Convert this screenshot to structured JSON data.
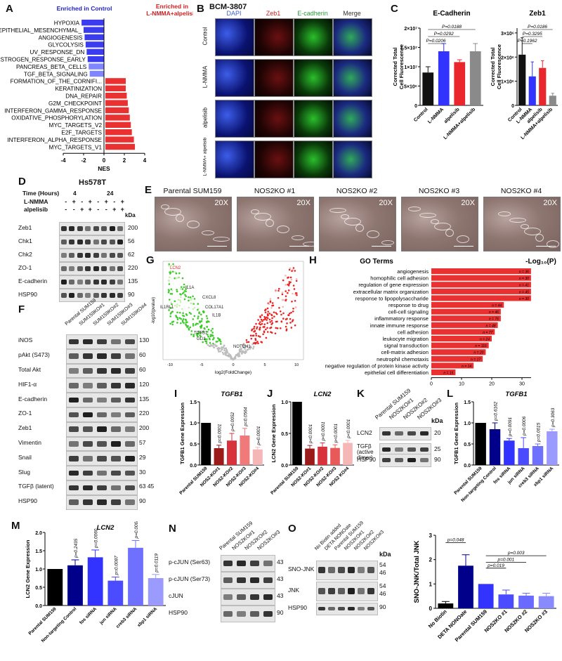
{
  "panels": {
    "A": {
      "label": "A",
      "header_control": "Enriched in Control",
      "header_treat": "Enriched in L-NMMA+alpelisib",
      "xlabel": "NES",
      "ticks": [
        "-4",
        "-2",
        "0",
        "2",
        "4"
      ],
      "terms": [
        {
          "name": "HYPOXIA",
          "nes": -2.2
        },
        {
          "name": "EPITHELIAL_MESENCHYMAL_",
          "nes": -2.0
        },
        {
          "name": "ANGIOGENESIS",
          "nes": -1.9
        },
        {
          "name": "GLYCOLYSIS",
          "nes": -1.8
        },
        {
          "name": "UV_RESPONSE_DN",
          "nes": -1.7
        },
        {
          "name": "ESTROGEN_RESPONSE_EARLY",
          "nes": -1.6
        },
        {
          "name": "PANCREAS_BETA_CELLS",
          "nes": -1.5
        },
        {
          "name": "TGF_BETA_SIGNALING",
          "nes": -1.4
        },
        {
          "name": "FORMATION_OF_THE_CORNIFI...",
          "nes": 2.0
        },
        {
          "name": "KERATINIZATION",
          "nes": 2.0
        },
        {
          "name": "DNA_REPAIR",
          "nes": 2.1
        },
        {
          "name": "G2M_CHECKPOINT",
          "nes": 2.2
        },
        {
          "name": "INTERFERON_GAMMA_RESPONSE",
          "nes": 2.3
        },
        {
          "name": "OXIDATIVE_PHOSPHORYLATION",
          "nes": 2.4
        },
        {
          "name": "MYC_TARGETS_V2",
          "nes": 2.5
        },
        {
          "name": "E2F_TARGETS",
          "nes": 2.6
        },
        {
          "name": "INTERFERON_ALPHA_RESPONSE",
          "nes": 2.8
        },
        {
          "name": "MYC_TARGETS_V1",
          "nes": 2.9
        }
      ]
    },
    "B": {
      "label": "B",
      "title": "BCM-3807",
      "columns": [
        "DAPI",
        "Zeb1",
        "E-cadherin",
        "Merge"
      ],
      "rows": [
        "Control",
        "L-NMMA",
        "alpelisib",
        "L-NMMA+ alpelisib"
      ]
    },
    "C": {
      "label": "C",
      "charts": [
        {
          "title": "E-Cadherin",
          "ylabel": "Corrected Total Cell Fluorescence",
          "yticks": [
            "0",
            "5×10⁶",
            "1×10⁷",
            "1.5×10⁷",
            "2×10⁷"
          ],
          "ymax": 20000000.0,
          "categories": [
            "Control",
            "L-NMMA",
            "alpelisib",
            "L-NMMA+alpelisib"
          ],
          "values": [
            8500000.0,
            14000000.0,
            11200000.0,
            14000000.0
          ],
          "errors": [
            1500000.0,
            2000000.0,
            600000.0,
            2000000.0
          ],
          "colors": [
            "#111111",
            "#3333ff",
            "#e8262b",
            "#8a8a8a"
          ],
          "pvalues": [
            "P=0.0206",
            "P=0.0292",
            "P=0.0188"
          ]
        },
        {
          "title": "Zeb1",
          "ylabel": "Corrected Total Cell Fluorescence",
          "yticks": [
            "0",
            "1×10⁶",
            "2×10⁶",
            "3×10⁶"
          ],
          "ymax": 3200000.0,
          "categories": [
            "Control",
            "L-NMMA",
            "alpelisib",
            "L-NMMA+alpelisib"
          ],
          "values": [
            2100000.0,
            1200000.0,
            1550000.0,
            400000.0
          ],
          "errors": [
            700000.0,
            600000.0,
            300000.0,
            100000.0
          ],
          "colors": [
            "#111111",
            "#3333ff",
            "#e8262b",
            "#8a8a8a"
          ],
          "pvalues": [
            "P=0.1962",
            "P=0.3295",
            "P=0.0186"
          ]
        }
      ]
    },
    "D": {
      "label": "D",
      "title": "Hs578T",
      "time_label": "Time (Hours)",
      "time_values": [
        "4",
        "24"
      ],
      "rows_treat": [
        {
          "name": "L-NMMA",
          "marks": [
            "-",
            "+",
            "-",
            "+",
            "-",
            "+",
            "-",
            "+"
          ]
        },
        {
          "name": "alpelisib",
          "marks": [
            "-",
            "-",
            "+",
            "+",
            "-",
            "-",
            "+",
            "+"
          ]
        }
      ],
      "kda_label": "kDa",
      "bands": [
        {
          "name": "Zeb1",
          "kda": "200"
        },
        {
          "name": "Chk1",
          "kda": "56"
        },
        {
          "name": "Chk2",
          "kda": "62"
        },
        {
          "name": "ZO-1",
          "kda": "220"
        },
        {
          "name": "E-cadherin",
          "kda": "135"
        },
        {
          "name": "HSP90",
          "kda": "90"
        }
      ]
    },
    "E": {
      "label": "E",
      "images": [
        {
          "title": "Parental SUM159",
          "mag": "20X"
        },
        {
          "title": "NOS2KO #1",
          "mag": "20X"
        },
        {
          "title": "NOS2KO #2",
          "mag": "20X"
        },
        {
          "title": "NOS2KO #3",
          "mag": "20X"
        },
        {
          "title": "NOS2KO #4",
          "mag": "20X"
        }
      ]
    },
    "F": {
      "label": "F",
      "lanes": [
        "Parental SUM159",
        "SUM159KO#1",
        "SUM159KO#2",
        "SUM159KO#3",
        "SUM159KO#4"
      ],
      "bands": [
        {
          "name": "iNOS",
          "kda": "130"
        },
        {
          "name": "pAkt (S473)",
          "kda": "60"
        },
        {
          "name": "Total Akt",
          "kda": "60"
        },
        {
          "name": "HIF1-α",
          "kda": "120"
        },
        {
          "name": "E-cadherin",
          "kda": "135"
        },
        {
          "name": "ZO-1",
          "kda": "220"
        },
        {
          "name": "Zeb1",
          "kda": "200"
        },
        {
          "name": "Vimentin",
          "kda": "57"
        },
        {
          "name": "Snail",
          "kda": "29"
        },
        {
          "name": "Slug",
          "kda": "30"
        },
        {
          "name": "TGFβ (latent)",
          "kda": "63 45"
        },
        {
          "name": "HSP90",
          "kda": "90"
        }
      ]
    },
    "G": {
      "label": "G",
      "xlabel": "log2(FoldChange)",
      "ylabel": "-log10(pvalue)",
      "genes": [
        "LCN2",
        "IL1A",
        "CXCL8",
        "COL17A1",
        "IL1RL1",
        "IL1B",
        "TGFB1",
        "GLI1",
        "NOTCH1"
      ],
      "xticks": [
        "-10",
        "-5",
        "0",
        "5",
        "10"
      ]
    },
    "H": {
      "label": "H",
      "col_terms": "GO Terms",
      "col_p": "-Log₁₀(P)",
      "xticks": [
        "0",
        "10",
        "20",
        "30"
      ],
      "terms": [
        {
          "name": "angiogenesis",
          "n": "n = 36",
          "p": 33
        },
        {
          "name": "homophilic cell adhesion",
          "n": "n = 30",
          "p": 33
        },
        {
          "name": "regulation of gene expression",
          "n": "n = 41",
          "p": 33
        },
        {
          "name": "extracellular matrix organization",
          "n": "n = 45",
          "p": 33
        },
        {
          "name": "response to lipopolysaccharide",
          "n": "n = 30",
          "p": 33
        },
        {
          "name": "response to drug",
          "n": "n = 44",
          "p": 24
        },
        {
          "name": "cell-cell signaling",
          "n": "n = 46",
          "p": 23
        },
        {
          "name": "inflammatory response",
          "n": "n = 76",
          "p": 23
        },
        {
          "name": "innate immune response",
          "n": "n = 48",
          "p": 22
        },
        {
          "name": "cell adhesion",
          "n": "n = 77",
          "p": 21
        },
        {
          "name": "leukocyte migration",
          "n": "n = 24",
          "p": 20
        },
        {
          "name": "signal transduction",
          "n": "n = 116",
          "p": 19
        },
        {
          "name": "cell-matrix adhesion",
          "n": "n = 20",
          "p": 18
        },
        {
          "name": "neutrophil chemotaxis",
          "n": "n = 17",
          "p": 17
        },
        {
          "name": "negative regulation of protein kinase activity",
          "n": "n = 14",
          "p": 14
        },
        {
          "name": "epithelial cell differentiation",
          "n": "n = 15",
          "p": 8
        }
      ]
    },
    "I": {
      "label": "I",
      "title": "TGFB1",
      "ylabel": "TGFB1 Gene Expression",
      "yticks": [
        "0.0",
        "0.5",
        "1.0",
        "1.5"
      ],
      "ymax": 1.5,
      "categories": [
        "Parental SUM159",
        "NOS2-KO#1",
        "NOS2-KO#2",
        "NOS2-KO#3",
        "NOS2-KO#4"
      ],
      "values": [
        1.0,
        0.4,
        0.58,
        0.7,
        0.37
      ],
      "errors": [
        0,
        0.07,
        0.17,
        0.17,
        0.05
      ],
      "colors": [
        "#000000",
        "#9b1b1b",
        "#d8323c",
        "#f07a7a",
        "#f4b6b6"
      ],
      "pvalues": [
        "",
        "p=0.0001",
        "p=0.0052",
        "p=0.0564",
        "p=0.0001"
      ]
    },
    "J": {
      "label": "J",
      "title": "LCN2",
      "ylabel": "LCN2 Gene Expression",
      "yticks": [
        "0.0",
        "0.5",
        "1.0"
      ],
      "ymax": 1.0,
      "categories": [
        "Parental SUM159",
        "NOS2-KO#1",
        "NOS2-KO#2",
        "NOS2-KO#3",
        "NOS2 KO#4"
      ],
      "values": [
        1.0,
        0.26,
        0.29,
        0.27,
        0.35
      ],
      "errors": [
        0,
        0.05,
        0.06,
        0.05,
        0.04
      ],
      "colors": [
        "#000000",
        "#9b1b1b",
        "#d8323c",
        "#e85a5a",
        "#f4b6b6"
      ],
      "pvalues": [
        "",
        "p<0.0001",
        "p<0.0001",
        "p<0.0001",
        "p<0.0001"
      ]
    },
    "K": {
      "label": "K",
      "lanes": [
        "Parental SUM159",
        "NOS2KO#1",
        "NOS2KO#2",
        "NOS2KO#3"
      ],
      "kda_label": "kDa",
      "bands": [
        {
          "name": "LCN2",
          "kda": "20"
        },
        {
          "name": "TGFβ (active dimer)",
          "kda": "25"
        },
        {
          "name": "HSP90",
          "kda": "90"
        }
      ]
    },
    "L": {
      "label": "L",
      "title": "TGFB1",
      "ylabel": "TGFB1 Gene Expression",
      "yticks": [
        "0.0",
        "0.5",
        "1.0",
        "1.5"
      ],
      "ymax": 1.5,
      "categories": [
        "Parental SUM159",
        "Non-targeting Control",
        "fos siRNA",
        "jun siRNA",
        "creb3 siRNA",
        "xbp1 siRNA"
      ],
      "values": [
        1.0,
        0.85,
        0.58,
        0.4,
        0.45,
        0.8
      ],
      "errors": [
        0,
        0.15,
        0.05,
        0.25,
        0.05,
        0.05
      ],
      "colors": [
        "#000000",
        "#00008b",
        "#3333ff",
        "#4b4bff",
        "#7070ff",
        "#9a9aff"
      ],
      "pvalues": [
        "",
        "p=0.6162",
        "p=0.0091",
        "p=0.0006",
        "p=0.0015",
        "p=0.3063"
      ]
    },
    "M": {
      "label": "M",
      "title": "LCN2",
      "ylabel": "LCN2 Gene Expression",
      "yticks": [
        "0.0",
        "0.5",
        "1.0",
        "1.5",
        "2.0"
      ],
      "ymax": 2.0,
      "categories": [
        "Parental SUM159",
        "Non-targeting Control",
        "fos siRNA",
        "jun siRNA",
        "creb3 siRNA",
        "xbp1 siRNA"
      ],
      "values": [
        1.0,
        1.1,
        1.32,
        0.68,
        1.58,
        0.75
      ],
      "errors": [
        0,
        0.15,
        0.2,
        0.1,
        0.2,
        0.1
      ],
      "colors": [
        "#000000",
        "#00008b",
        "#3333ff",
        "#4b4bff",
        "#7070ff",
        "#9a9aff"
      ],
      "pvalues": [
        "",
        "p=0.2435",
        "p=0.0060",
        "p=0.0087",
        "p=0.0008",
        "p=0.0119"
      ]
    },
    "N": {
      "label": "N",
      "lanes": [
        "Parental SUM159",
        "NOS2KO#1",
        "NOS2KO#2",
        "NOS2KO#3"
      ],
      "bands": [
        {
          "name": "p-cJUN (Ser63)",
          "kda": "43"
        },
        {
          "name": "p-cJUN (Ser73)",
          "kda": "43"
        },
        {
          "name": "cJUN",
          "kda": "43"
        },
        {
          "name": "HSP90",
          "kda": "90"
        }
      ]
    },
    "O": {
      "label": "O",
      "lanes": [
        "No Biotin added",
        "DETA NONOate",
        "Parental SUM159",
        "NOS2KO#1",
        "NOS2KO#2",
        "NOS2KO#3"
      ],
      "kda_label": "kDa",
      "bands": [
        {
          "name": "SNO-JNK",
          "kda": "54 46"
        },
        {
          "name": "JNK",
          "kda": "54 46"
        },
        {
          "name": "HSP90",
          "kda": "90"
        }
      ],
      "chart": {
        "ylabel": "SNO-JNK/Total JNK",
        "yticks": [
          "0",
          "1",
          "2",
          "3"
        ],
        "ymax": 3,
        "categories": [
          "No Biotin",
          "DETA NONOate",
          "Parental SUM159",
          "NOS2KO #1",
          "NOS2KO #2",
          "NOS2KO #3"
        ],
        "values": [
          0.2,
          1.75,
          1.0,
          0.57,
          0.52,
          0.5
        ],
        "errors": [
          0.08,
          0.45,
          0,
          0.18,
          0.1,
          0.12
        ],
        "colors": [
          "#000000",
          "#00008b",
          "#3333ff",
          "#4b4bff",
          "#6a6aff",
          "#8a8aff"
        ],
        "pvalues": [
          "p=0.048",
          "p=0.019",
          "p=0.001",
          "p=0.003"
        ]
      }
    }
  }
}
